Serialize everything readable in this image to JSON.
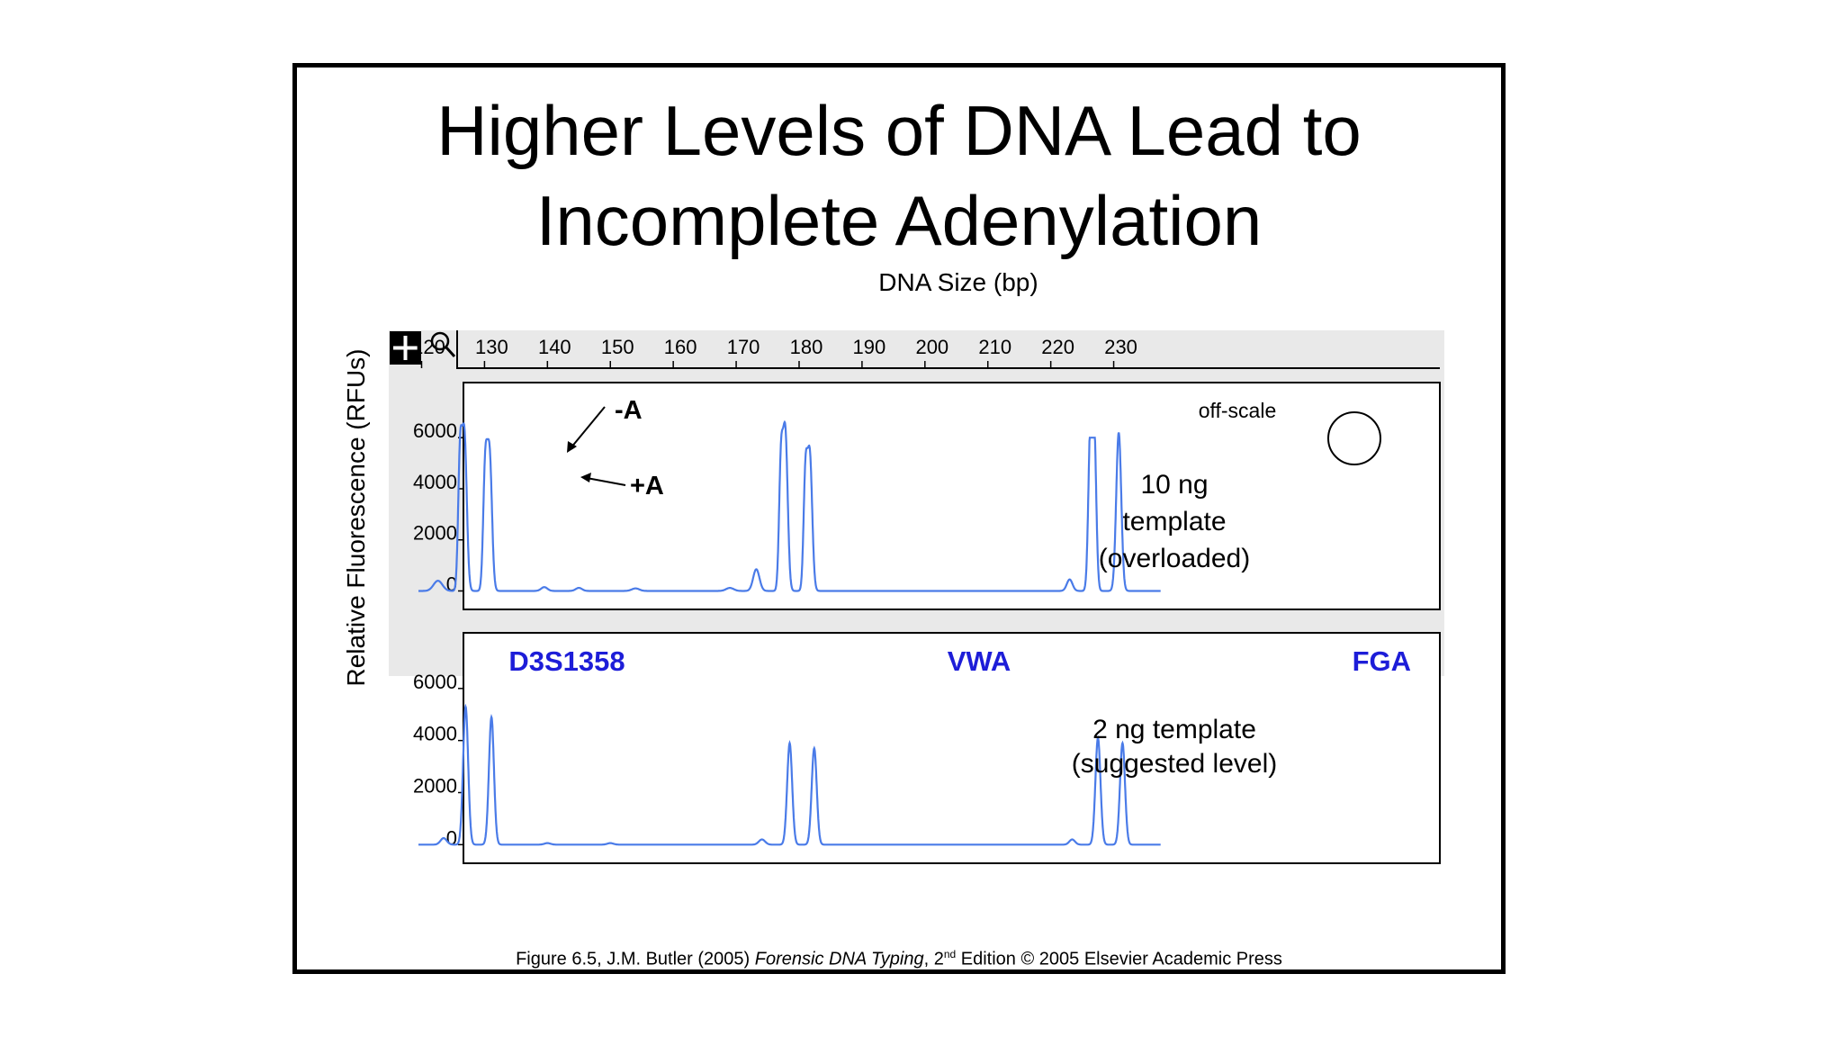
{
  "slide": {
    "title_line1": "Higher Levels of DNA Lead to",
    "title_line2": "Incomplete Adenylation",
    "caption_part1": "Figure 6.5, J.M. Butler (2005) ",
    "caption_book": "Forensic DNA Typing",
    "caption_part2": ", 2",
    "caption_sup": "nd",
    "caption_part3": " Edition © 2005 Elsevier Academic Press"
  },
  "toolbar": {
    "icons": [
      "crosshair-icon",
      "magnifier-icon"
    ]
  },
  "colors": {
    "trace": "#4a7be8",
    "locus_label": "#1d1dd8",
    "panel_background": "#e9e9e9"
  },
  "chart_data": {
    "type": "line",
    "x_axis": {
      "label": "DNA Size (bp)",
      "ticks": [
        120,
        130,
        140,
        150,
        160,
        170,
        180,
        190,
        200,
        210,
        220,
        230
      ],
      "range": [
        119.5,
        237.5
      ]
    },
    "y_axis": {
      "label": "Relative Fluorescence (RFUs)",
      "ticks": [
        0,
        2000,
        4000,
        6000
      ],
      "range": [
        -300,
        7100
      ]
    },
    "loci": [
      "D3S1358",
      "VWA",
      "FGA"
    ],
    "panels": [
      {
        "name": "10 ng template (overloaded)",
        "text_lines": [
          "10 ng",
          "template",
          "(overloaded)"
        ],
        "annotations": {
          "minus_a": "-A",
          "plus_a": "+A",
          "off_scale": "off-scale"
        },
        "peaks": [
          {
            "x": 122.6,
            "y": 400,
            "w": 0.7
          },
          {
            "x": 126.1,
            "y": 4900,
            "w": 0.3
          },
          {
            "x": 126.8,
            "y": 6100,
            "w": 0.38
          },
          {
            "x": 130.1,
            "y": 4500,
            "w": 0.32
          },
          {
            "x": 130.8,
            "y": 5300,
            "w": 0.38
          },
          {
            "x": 139.5,
            "y": 150,
            "w": 0.5
          },
          {
            "x": 145.0,
            "y": 120,
            "w": 0.5
          },
          {
            "x": 154.0,
            "y": 100,
            "w": 0.6
          },
          {
            "x": 169.0,
            "y": 120,
            "w": 0.6
          },
          {
            "x": 173.2,
            "y": 850,
            "w": 0.5
          },
          {
            "x": 177.1,
            "y": 4600,
            "w": 0.3
          },
          {
            "x": 177.8,
            "y": 6200,
            "w": 0.38
          },
          {
            "x": 181.0,
            "y": 4200,
            "w": 0.3
          },
          {
            "x": 181.7,
            "y": 5300,
            "w": 0.38
          },
          {
            "x": 223.0,
            "y": 450,
            "w": 0.45
          },
          {
            "x": 226.3,
            "y": 6000,
            "w": 0.33
          },
          {
            "x": 226.9,
            "y": 6000,
            "w": 0.33
          },
          {
            "x": 230.8,
            "y": 6200,
            "w": 0.4
          }
        ]
      },
      {
        "name": "2 ng template (suggested level)",
        "text_lines": [
          "2 ng template",
          "(suggested  level)"
        ],
        "peaks": [
          {
            "x": 123.5,
            "y": 250,
            "w": 0.5
          },
          {
            "x": 127.0,
            "y": 5300,
            "w": 0.4
          },
          {
            "x": 131.1,
            "y": 4900,
            "w": 0.4
          },
          {
            "x": 140.0,
            "y": 60,
            "w": 0.5
          },
          {
            "x": 150.0,
            "y": 60,
            "w": 0.5
          },
          {
            "x": 174.1,
            "y": 200,
            "w": 0.5
          },
          {
            "x": 178.5,
            "y": 3900,
            "w": 0.4
          },
          {
            "x": 182.4,
            "y": 3700,
            "w": 0.4
          },
          {
            "x": 223.4,
            "y": 200,
            "w": 0.45
          },
          {
            "x": 227.5,
            "y": 4100,
            "w": 0.4
          },
          {
            "x": 231.4,
            "y": 3900,
            "w": 0.4
          }
        ]
      }
    ]
  }
}
